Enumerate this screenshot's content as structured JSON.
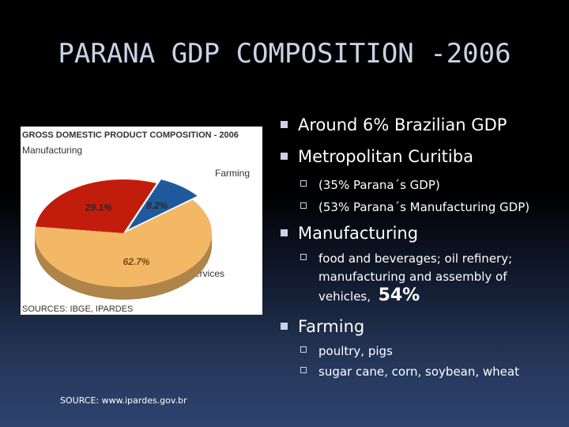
{
  "slide": {
    "title": "PARANA GDP COMPOSITION -2006",
    "source_note": "SOURCE: www.ipardes.gov.br"
  },
  "bullets": {
    "b1": "Around 6% Brazilian GDP",
    "b2": "Metropolitan Curitiba",
    "b2_sub1": " (35%  Parana´s GDP)",
    "b2_sub2": "(53% Parana´s Manufacturing GDP)",
    "b3": "Manufacturing",
    "b3_sub1_line1": "food and beverages; oil refinery;",
    "b3_sub1_line2": "manufacturing and assembly of",
    "b3_sub1_line3": "vehicles,",
    "b3_sub1_big": "54%",
    "b4": "Farming",
    "b4_sub1": "poultry, pigs",
    "b4_sub2": "sugar cane, corn, soybean, wheat"
  },
  "chart_data": {
    "type": "pie",
    "title": "GROSS DOMESTIC PRODUCT COMPOSITION - 2006",
    "labels": [
      "Manufacturing",
      "Farming",
      "Services"
    ],
    "values": [
      29.1,
      8.2,
      62.7
    ],
    "value_labels": [
      "29.1%",
      "8.2%",
      "62.7%"
    ],
    "colors": [
      "#c21d0c",
      "#1f5a9e",
      "#f2b866"
    ],
    "source": "SOURCES: IBGE, IPARDES"
  }
}
